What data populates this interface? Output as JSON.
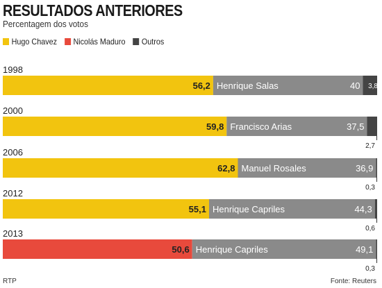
{
  "title": "RESULTADOS ANTERIORES",
  "subtitle": "Percentagem dos votos",
  "legend": [
    {
      "label": "Hugo Chavez",
      "color": "#f2c40f"
    },
    {
      "label": "Nicolás Maduro",
      "color": "#e84a3c"
    },
    {
      "label": "Outros",
      "color": "#444444"
    }
  ],
  "chart_data": {
    "type": "bar",
    "orientation": "horizontal",
    "stacked": true,
    "categories": [
      "1998",
      "2000",
      "2006",
      "2012",
      "2013"
    ],
    "rows": [
      {
        "year": "1998",
        "winner": "Hugo Chavez",
        "winner_label": "56,2",
        "winner_value": 56.2,
        "opponent": "Henrique Salas",
        "opponent_label": "40",
        "opponent_value": 40,
        "others_label": "3,8",
        "others_value": 3.8,
        "others_inside": true
      },
      {
        "year": "2000",
        "winner": "Hugo Chavez",
        "winner_label": "59,8",
        "winner_value": 59.8,
        "opponent": "Francisco Arias",
        "opponent_label": "37,5",
        "opponent_value": 37.5,
        "others_label": "2,7",
        "others_value": 2.7,
        "others_inside": false
      },
      {
        "year": "2006",
        "winner": "Hugo Chavez",
        "winner_label": "62,8",
        "winner_value": 62.8,
        "opponent": "Manuel Rosales",
        "opponent_label": "36,9",
        "opponent_value": 36.9,
        "others_label": "0,3",
        "others_value": 0.3,
        "others_inside": false
      },
      {
        "year": "2012",
        "winner": "Hugo Chavez",
        "winner_label": "55,1",
        "winner_value": 55.1,
        "opponent": "Henrique Capriles",
        "opponent_label": "44,3",
        "opponent_value": 44.3,
        "others_label": "0,6",
        "others_value": 0.6,
        "others_inside": false
      },
      {
        "year": "2013",
        "winner": "Nicolás Maduro",
        "winner_label": "50,6",
        "winner_value": 50.6,
        "opponent": "Henrique Capriles",
        "opponent_label": "49,1",
        "opponent_value": 49.1,
        "others_label": "0,3",
        "others_value": 0.3,
        "others_inside": false
      }
    ],
    "colors": {
      "Hugo Chavez": "#f2c40f",
      "Nicolás Maduro": "#e84a3c",
      "opponent": "#8a8a8a",
      "Outros": "#444444"
    },
    "xlim": [
      0,
      100
    ]
  },
  "footer": {
    "credit": "RTP",
    "source": "Fonte: Reuters"
  }
}
